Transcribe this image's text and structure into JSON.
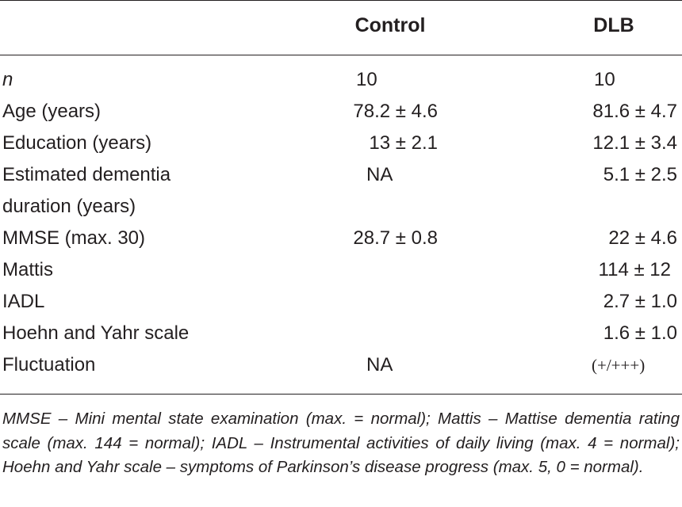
{
  "table": {
    "headers": {
      "control": "Control",
      "dlb": "DLB"
    },
    "rows": [
      {
        "label": "n",
        "control": "10",
        "dlb": "10"
      },
      {
        "label": "Age (years)",
        "control": "78.2 ± 4.6",
        "dlb": "81.6 ± 4.7"
      },
      {
        "label": "Education (years)",
        "control": "13 ± 2.1",
        "dlb": "12.1 ± 3.4"
      },
      {
        "label": "Estimated dementia",
        "control": "NA",
        "dlb": "5.1 ± 2.5"
      },
      {
        "label": "duration (years)",
        "control": "",
        "dlb": ""
      },
      {
        "label": "MMSE (max. 30)",
        "control": "28.7 ± 0.8",
        "dlb": "22 ± 4.6"
      },
      {
        "label": "Mattis",
        "control": "",
        "dlb": "114 ± 12"
      },
      {
        "label": "IADL",
        "control": "",
        "dlb": "2.7 ± 1.0"
      },
      {
        "label": "Hoehn and Yahr scale",
        "control": "",
        "dlb": "1.6 ± 1.0"
      },
      {
        "label": "Fluctuation",
        "control": "NA",
        "dlb": "(+/+++)"
      }
    ],
    "footnote": "MMSE – Mini mental state examination (max. = normal); Mattis – Mattise dementia rating scale (max. 144 = normal); IADL – Instrumental activities of daily living (max. 4 = normal); Hoehn and Yahr scale – symptoms of Parkinson’s disease progress (max. 5, 0 = normal)."
  }
}
